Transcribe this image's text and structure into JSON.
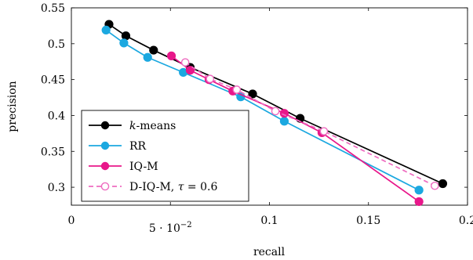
{
  "chart_data": {
    "type": "line",
    "xlabel": "recall",
    "ylabel": "precision",
    "xlim": [
      0,
      0.2
    ],
    "ylim": [
      0.275,
      0.55
    ],
    "x_ticks": [
      {
        "value": 0,
        "label": "0"
      },
      {
        "value": 0.05,
        "label": "5 · 10",
        "sup": "−2"
      },
      {
        "value": 0.1,
        "label": "0.1"
      },
      {
        "value": 0.15,
        "label": "0.15"
      },
      {
        "value": 0.2,
        "label": "0.2"
      }
    ],
    "y_ticks": [
      {
        "value": 0.3,
        "label": "0.3"
      },
      {
        "value": 0.35,
        "label": "0.35"
      },
      {
        "value": 0.4,
        "label": "0.4"
      },
      {
        "value": 0.45,
        "label": "0.45"
      },
      {
        "value": 0.5,
        "label": "0.5"
      },
      {
        "value": 0.55,
        "label": "0.55"
      }
    ],
    "grid": false,
    "legend_position": "bottom-left",
    "series": [
      {
        "name": "k-means",
        "name_prefix": "k",
        "name_suffix": "-means",
        "color": "#000000",
        "marker": "filled-circle",
        "dashed": false,
        "x": [
          0.019,
          0.0275,
          0.0415,
          0.06,
          0.0915,
          0.1155,
          0.1875
        ],
        "y": [
          0.527,
          0.511,
          0.491,
          0.467,
          0.43,
          0.396,
          0.305
        ]
      },
      {
        "name": "RR",
        "color": "#1ba8e0",
        "marker": "filled-circle",
        "dashed": false,
        "x": [
          0.0175,
          0.0265,
          0.0385,
          0.0565,
          0.0855,
          0.1075,
          0.1755
        ],
        "y": [
          0.519,
          0.501,
          0.481,
          0.46,
          0.426,
          0.392,
          0.296
        ]
      },
      {
        "name": "IQ-M",
        "color": "#e8178a",
        "marker": "filled-circle",
        "dashed": false,
        "x": [
          0.0505,
          0.06,
          0.0695,
          0.0815,
          0.1075,
          0.1265,
          0.1755
        ],
        "y": [
          0.483,
          0.463,
          0.45,
          0.434,
          0.403,
          0.376,
          0.28
        ]
      },
      {
        "name": "D-IQ-M, τ = 0.6",
        "name_prefix": "D-IQ-M, ",
        "name_symbol": "τ",
        "name_suffix": " = 0.6",
        "color": "#ee6cc0",
        "marker": "open-circle",
        "dashed": true,
        "x": [
          0.0575,
          0.07,
          0.0835,
          0.103,
          0.1275,
          0.1835
        ],
        "y": [
          0.474,
          0.451,
          0.436,
          0.406,
          0.378,
          0.302
        ]
      }
    ]
  }
}
